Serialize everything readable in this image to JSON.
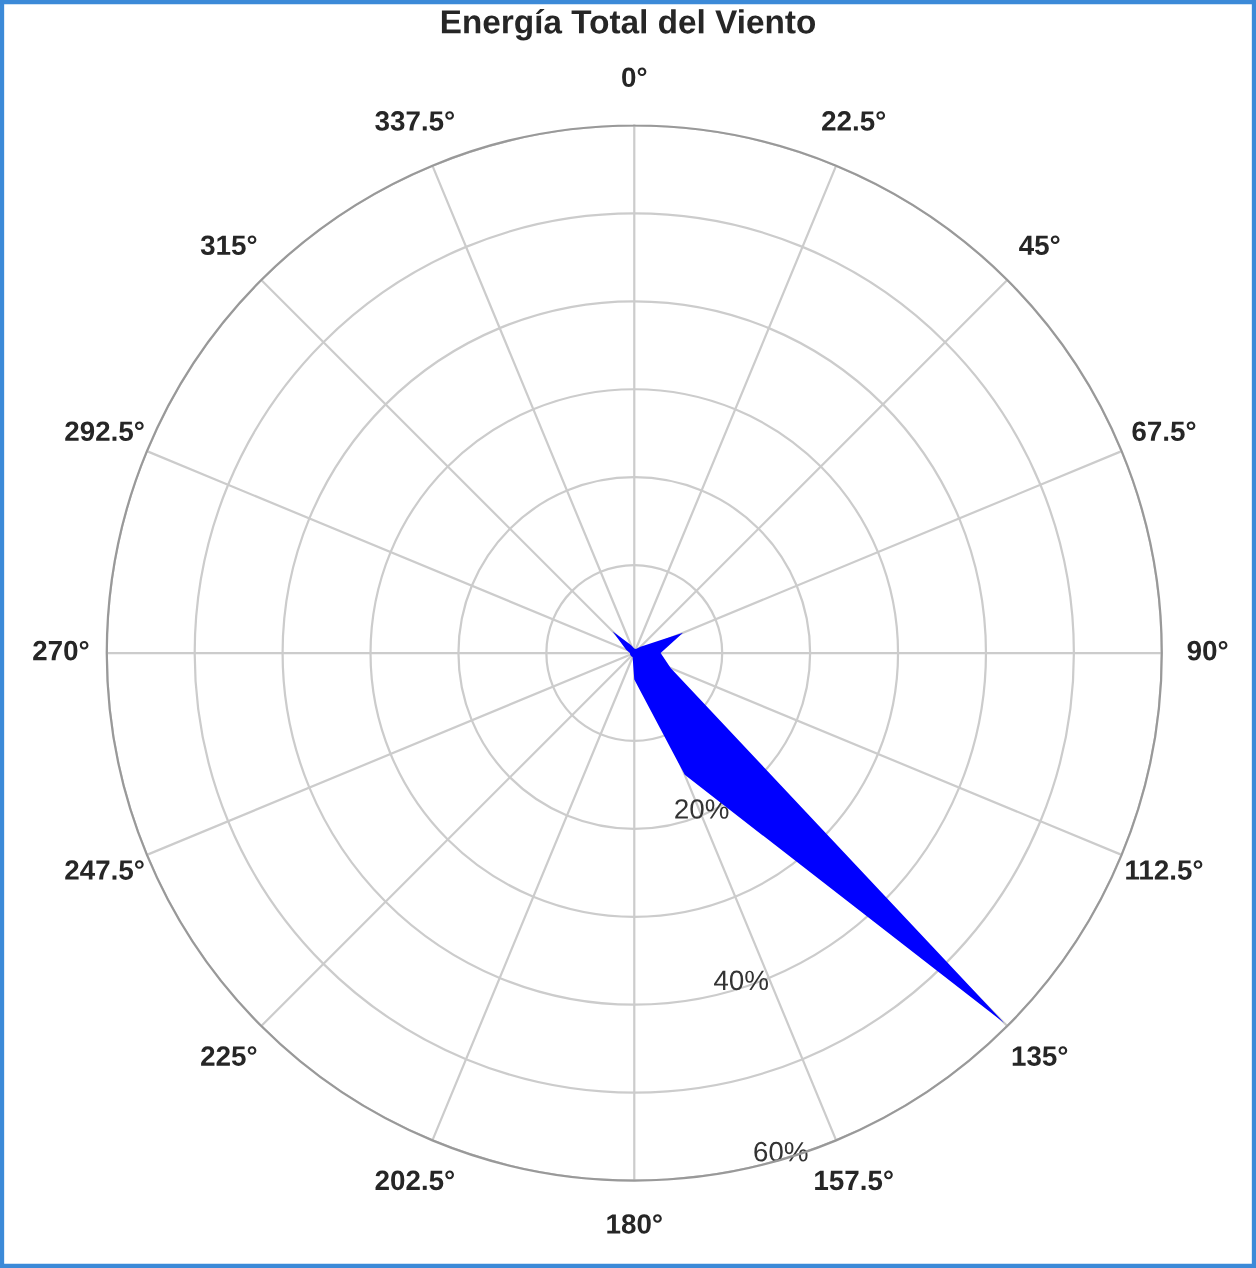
{
  "chart_data": {
    "type": "radar",
    "title": "Energía Total del Viento",
    "categories": [
      "0°",
      "22.5°",
      "45°",
      "67.5°",
      "90°",
      "112.5°",
      "135°",
      "157.5°",
      "180°",
      "202.5°",
      "225°",
      "247.5°",
      "270°",
      "292.5°",
      "315°",
      "337.5°"
    ],
    "series": [
      {
        "color": "#0000ff",
        "values": [
          0.5,
          0.5,
          1,
          6,
          3,
          4.5,
          59.5,
          15,
          3,
          0.5,
          0.5,
          0.5,
          0.5,
          1,
          3.5,
          1
        ]
      }
    ],
    "ylim": [
      0,
      60
    ],
    "yticks": [
      {
        "value": 20,
        "label": "20%"
      },
      {
        "value": 40,
        "label": "40%"
      },
      {
        "value": 60,
        "label": "60%"
      }
    ],
    "grid": true
  }
}
